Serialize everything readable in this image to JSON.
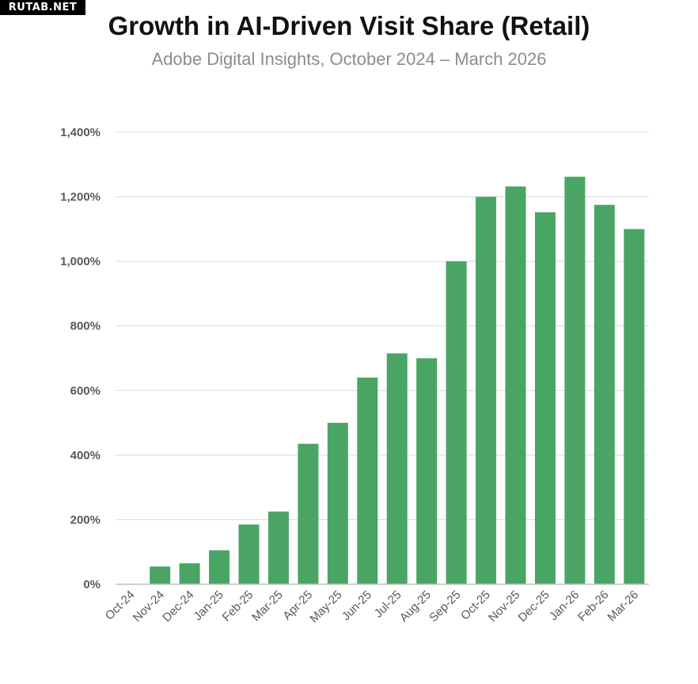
{
  "watermark": "RUTAB.NET",
  "chart_data": {
    "type": "bar",
    "title": "Growth in AI-Driven Visit Share (Retail)",
    "subtitle": "Adobe Digital Insights, October 2024 – March 2026",
    "xlabel": "",
    "ylabel": "",
    "categories": [
      "Oct-24",
      "Nov-24",
      "Dec-24",
      "Jan-25",
      "Feb-25",
      "Mar-25",
      "Apr-25",
      "May-25",
      "Jun-25",
      "Jul-25",
      "Aug-25",
      "Sep-25",
      "Oct-25",
      "Nov-25",
      "Dec-25",
      "Jan-26",
      "Feb-26",
      "Mar-26"
    ],
    "values": [
      0,
      55,
      65,
      105,
      185,
      225,
      435,
      500,
      640,
      715,
      700,
      1000,
      1200,
      1232,
      1152,
      1262,
      1175,
      1100
    ],
    "ylim": [
      0,
      1400
    ],
    "yticks": [
      0,
      200,
      400,
      600,
      800,
      1000,
      1200,
      1400
    ],
    "ytick_labels": [
      "0%",
      "200%",
      "400%",
      "600%",
      "800%",
      "1,000%",
      "1,200%",
      "1,400%"
    ],
    "grid": true,
    "legend": "none",
    "bar_color": "#4aa564",
    "grid_color": "#d9d9d9",
    "axis_color": "#bfbfbf"
  }
}
